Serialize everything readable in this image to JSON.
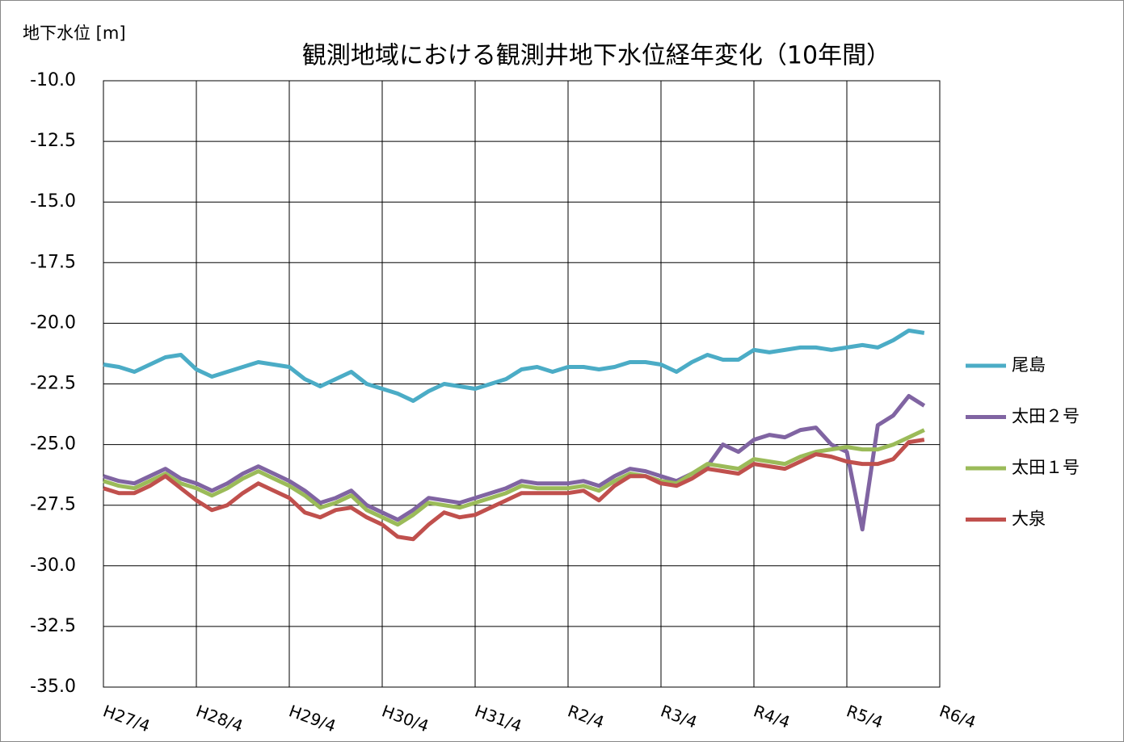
{
  "chart_data": {
    "type": "line",
    "title": "観測地域における観測井地下水位経年変化（10年間）",
    "y_label": "地下水位 [m]",
    "x": [
      0,
      2,
      4,
      6,
      8,
      10,
      12,
      14,
      16,
      18,
      20,
      22,
      24,
      26,
      28,
      30,
      32,
      34,
      36,
      38,
      40,
      42,
      44,
      46,
      48,
      50,
      52,
      54,
      56,
      58,
      60,
      62,
      64,
      66,
      68,
      70,
      72,
      74,
      76,
      78,
      80,
      82,
      84,
      86,
      88,
      90,
      92,
      94,
      96,
      98,
      100,
      102,
      104,
      106
    ],
    "xlim": [
      0,
      108
    ],
    "xticks": [
      {
        "value": 0,
        "label": "H27/4"
      },
      {
        "value": 12,
        "label": "H28/4"
      },
      {
        "value": 24,
        "label": "H29/4"
      },
      {
        "value": 36,
        "label": "H30/4"
      },
      {
        "value": 48,
        "label": "H31/4"
      },
      {
        "value": 60,
        "label": "R2/4"
      },
      {
        "value": 72,
        "label": "R3/4"
      },
      {
        "value": 84,
        "label": "R4/4"
      },
      {
        "value": 96,
        "label": "R5/4"
      },
      {
        "value": 108,
        "label": "R6/4"
      }
    ],
    "ylim": [
      -35,
      -10
    ],
    "yticks": [
      {
        "value": -35,
        "label": "-35.0"
      },
      -32.5,
      {
        "value": -30,
        "label": "-30.0"
      },
      -27.5,
      {
        "value": -25,
        "label": "-25.0"
      },
      -22.5,
      {
        "value": -20,
        "label": "-20.0"
      },
      -17.5,
      {
        "value": -15,
        "label": "-15.0"
      },
      -12.5,
      {
        "value": -10,
        "label": "-10.0"
      }
    ],
    "grid": true,
    "legend": "right",
    "series": [
      {
        "name": "尾島",
        "color": "#4bacc6",
        "values": [
          -21.7,
          -21.8,
          -22.0,
          -21.7,
          -21.4,
          -21.3,
          -21.9,
          -22.2,
          -22.0,
          -21.8,
          -21.6,
          -21.7,
          -21.8,
          -22.3,
          -22.6,
          -22.3,
          -22.0,
          -22.5,
          -22.7,
          -22.9,
          -23.2,
          -22.8,
          -22.5,
          -22.6,
          -22.7,
          -22.5,
          -22.3,
          -21.9,
          -21.8,
          -22.0,
          -21.8,
          -21.8,
          -21.9,
          -21.8,
          -21.6,
          -21.6,
          -21.7,
          -22.0,
          -21.6,
          -21.3,
          -21.5,
          -21.5,
          -21.1,
          -21.2,
          -21.1,
          -21.0,
          -21.0,
          -21.1,
          -21.0,
          -20.9,
          -21.0,
          -20.7,
          -20.3,
          -20.4
        ]
      },
      {
        "name": "太田２号",
        "color": "#8064a2",
        "values": [
          -26.3,
          -26.5,
          -26.6,
          -26.3,
          -26.0,
          -26.4,
          -26.6,
          -26.9,
          -26.6,
          -26.2,
          -25.9,
          -26.2,
          -26.5,
          -26.9,
          -27.4,
          -27.2,
          -26.9,
          -27.5,
          -27.8,
          -28.1,
          -27.7,
          -27.2,
          -27.3,
          -27.4,
          -27.2,
          -27.0,
          -26.8,
          -26.5,
          -26.6,
          -26.6,
          -26.6,
          -26.5,
          -26.7,
          -26.3,
          -26.0,
          -26.1,
          -26.3,
          -26.5,
          -26.2,
          -25.9,
          -25.0,
          -25.3,
          -24.8,
          -24.6,
          -24.7,
          -24.4,
          -24.3,
          -25.0,
          -25.3,
          -28.5,
          -24.2,
          -23.8,
          -23.0,
          -23.4
        ]
      },
      {
        "name": "太田１号",
        "color": "#9bbb59",
        "values": [
          -26.5,
          -26.7,
          -26.8,
          -26.5,
          -26.2,
          -26.6,
          -26.8,
          -27.1,
          -26.8,
          -26.4,
          -26.1,
          -26.4,
          -26.7,
          -27.1,
          -27.6,
          -27.4,
          -27.1,
          -27.7,
          -28.0,
          -28.3,
          -27.9,
          -27.4,
          -27.5,
          -27.6,
          -27.4,
          -27.2,
          -27.0,
          -26.7,
          -26.8,
          -26.8,
          -26.8,
          -26.7,
          -26.9,
          -26.5,
          -26.2,
          -26.3,
          -26.5,
          -26.6,
          -26.2,
          -25.8,
          -25.9,
          -26.0,
          -25.6,
          -25.7,
          -25.8,
          -25.5,
          -25.3,
          -25.2,
          -25.1,
          -25.2,
          -25.2,
          -25.0,
          -24.7,
          -24.4
        ]
      },
      {
        "name": "大泉",
        "color": "#c0504d",
        "values": [
          -26.8,
          -27.0,
          -27.0,
          -26.7,
          -26.3,
          -26.8,
          -27.3,
          -27.7,
          -27.5,
          -27.0,
          -26.6,
          -26.9,
          -27.2,
          -27.8,
          -28.0,
          -27.7,
          -27.6,
          -28.0,
          -28.3,
          -28.8,
          -28.9,
          -28.3,
          -27.8,
          -28.0,
          -27.9,
          -27.6,
          -27.3,
          -27.0,
          -27.0,
          -27.0,
          -27.0,
          -26.9,
          -27.3,
          -26.7,
          -26.3,
          -26.3,
          -26.6,
          -26.7,
          -26.4,
          -26.0,
          -26.1,
          -26.2,
          -25.8,
          -25.9,
          -26.0,
          -25.7,
          -25.4,
          -25.5,
          -25.7,
          -25.8,
          -25.8,
          -25.6,
          -24.9,
          -24.8
        ]
      }
    ]
  }
}
